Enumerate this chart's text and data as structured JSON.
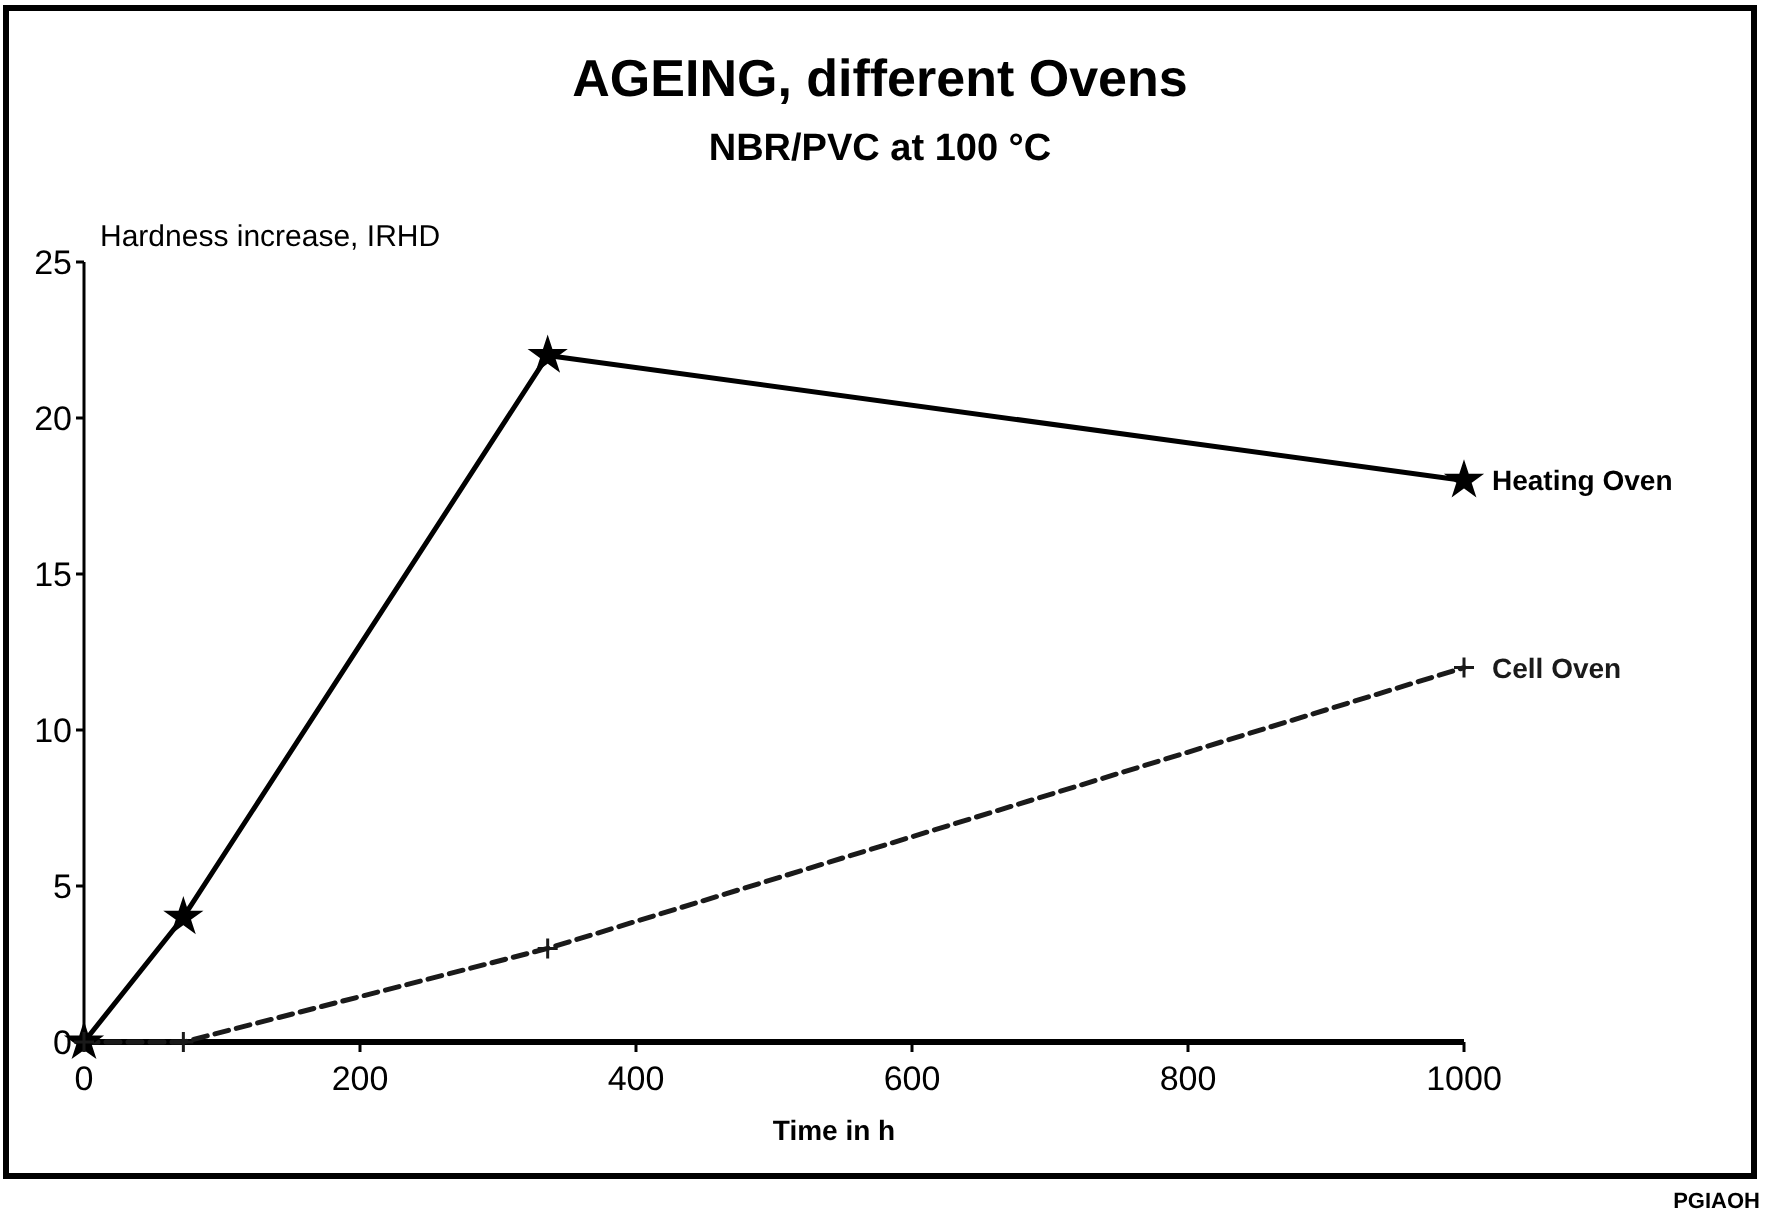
{
  "chart_data": {
    "type": "line",
    "title": "AGEING,  different  Ovens",
    "subtitle": "NBR/PVC at 100 °C",
    "xlabel": "Time  in  h",
    "ylabel": "Hardness increase, IRHD",
    "xlim": [
      0,
      1000
    ],
    "ylim": [
      0,
      25
    ],
    "xticks": [
      0,
      200,
      400,
      600,
      800,
      1000
    ],
    "yticks": [
      0,
      5,
      10,
      15,
      20,
      25
    ],
    "grid": false,
    "legend": false,
    "series": [
      {
        "name": "Heating Oven",
        "color": "#000000",
        "marker": "star",
        "line_style": "solid",
        "x": [
          0,
          72,
          336,
          1000
        ],
        "values": [
          0,
          4,
          22,
          18
        ]
      },
      {
        "name": "Cell Oven",
        "color": "#1a1a1a",
        "marker": "cross",
        "line_style": "dashed",
        "x": [
          0,
          72,
          336,
          1000
        ],
        "values": [
          0,
          0,
          3,
          12
        ]
      }
    ],
    "annotations": [
      "PGIAOH"
    ]
  }
}
